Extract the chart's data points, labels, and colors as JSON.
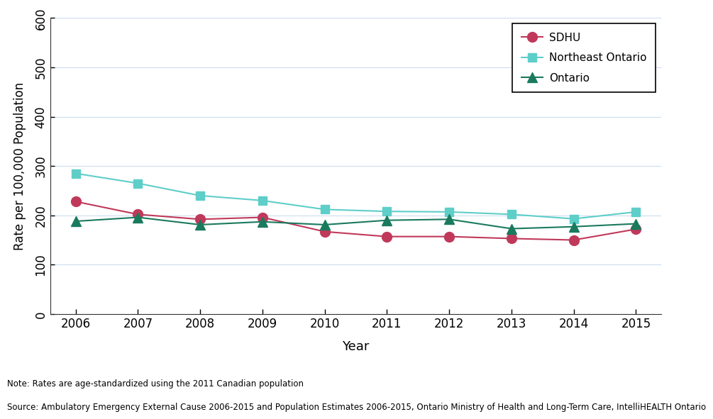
{
  "years": [
    2006,
    2007,
    2008,
    2009,
    2010,
    2011,
    2012,
    2013,
    2014,
    2015
  ],
  "SDHU": [
    228,
    202,
    192,
    196,
    167,
    157,
    157,
    153,
    150,
    172
  ],
  "Northeast_Ontario": [
    285,
    265,
    240,
    230,
    212,
    208,
    207,
    202,
    193,
    207
  ],
  "Ontario": [
    188,
    196,
    181,
    187,
    181,
    190,
    192,
    173,
    177,
    183
  ],
  "SDHU_color": "#c0395a",
  "Northeast_color": "#5ecec9",
  "Ontario_color": "#1a7a5e",
  "ylabel": "Rate per 100,000 Population",
  "xlabel": "Year",
  "ylim": [
    0,
    600
  ],
  "yticks": [
    0,
    100,
    200,
    300,
    400,
    500,
    600
  ],
  "note_line1": "Note: Rates are age-standardized using the 2011 Canadian population",
  "note_line2": "Source: Ambulatory Emergency External Cause 2006-2015 and Population Estimates 2006-2015, Ontario Ministry of Health and Long-Term Care, IntelliHEALTH Ontario",
  "legend_labels": [
    "SDHU",
    "Northeast Ontario",
    "Ontario"
  ],
  "background_color": "#ffffff",
  "grid_color": "#ccddee"
}
